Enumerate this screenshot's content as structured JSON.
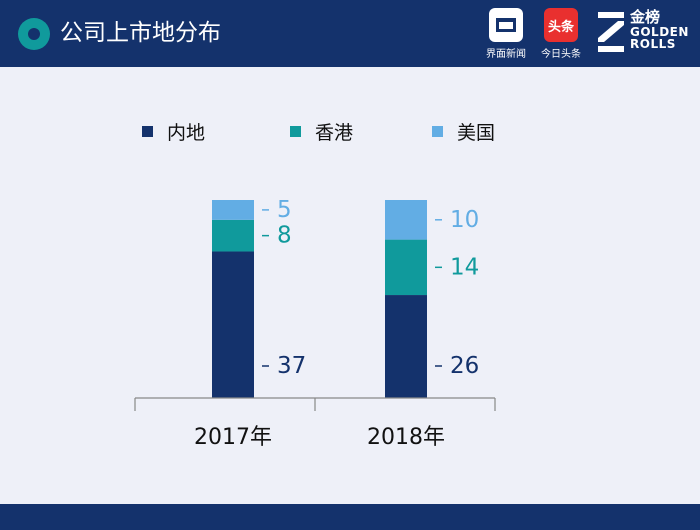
{
  "header": {
    "title": "公司上市地分布",
    "logos": [
      {
        "caption": "界面新闻",
        "icon": "jiemian-logo-icon"
      },
      {
        "caption": "今日头条",
        "icon": "toutiao-logo-icon",
        "text": "头条"
      },
      {
        "name_cn": "金榜",
        "name_en_1": "GOLDEN",
        "name_en_2": "ROLLS",
        "icon": "golden-rolls-logo-icon"
      }
    ]
  },
  "colors": {
    "header_bg": "#14326c",
    "mainland": "#14326c",
    "hongkong": "#109a9c",
    "usa": "#62ade4",
    "background": "#eef0f8"
  },
  "chart_data": {
    "type": "bar",
    "stacked": true,
    "categories": [
      "2017年",
      "2018年"
    ],
    "series": [
      {
        "name": "内地",
        "values": [
          37,
          26
        ],
        "color": "#14326c"
      },
      {
        "name": "香港",
        "values": [
          8,
          14
        ],
        "color": "#109a9c"
      },
      {
        "name": "美国",
        "values": [
          5,
          10
        ],
        "color": "#62ade4"
      }
    ],
    "legend_position": "top",
    "grid": false,
    "show_y_axis": false
  }
}
